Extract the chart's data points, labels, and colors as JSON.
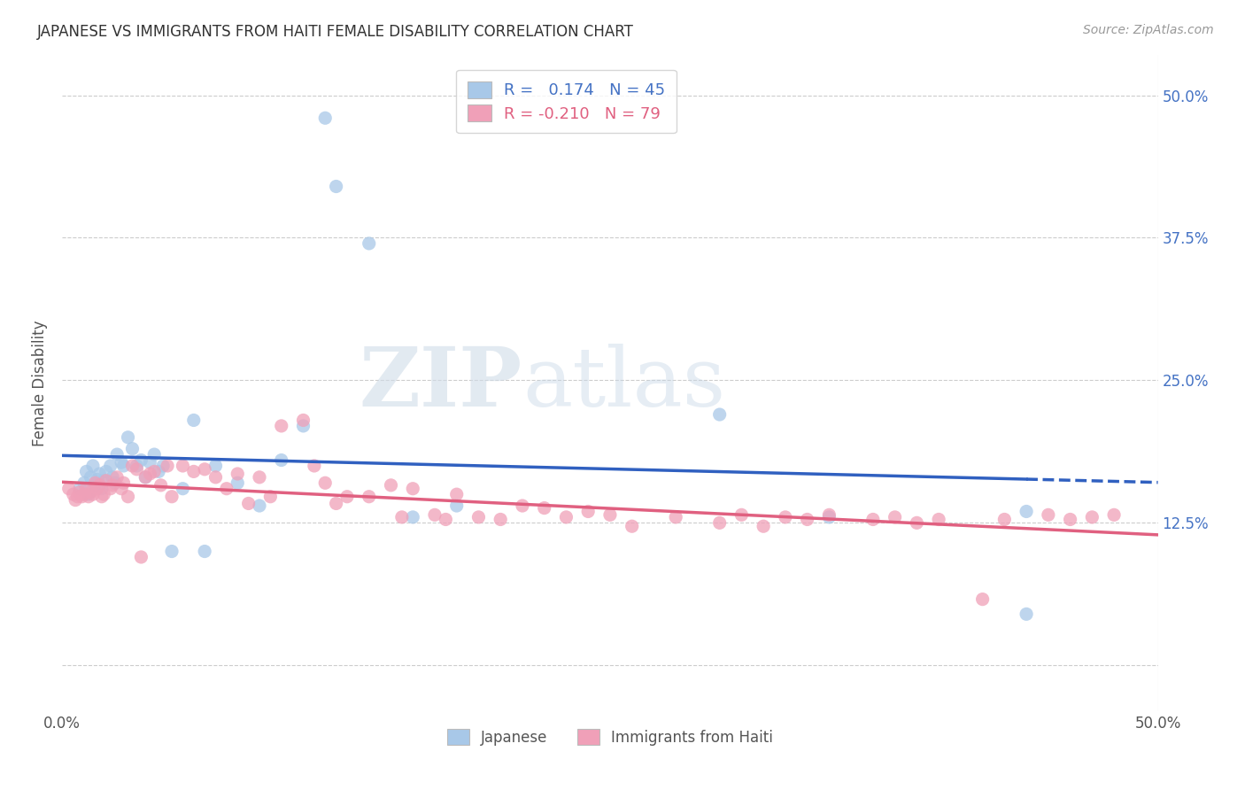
{
  "title": "JAPANESE VS IMMIGRANTS FROM HAITI FEMALE DISABILITY CORRELATION CHART",
  "source": "Source: ZipAtlas.com",
  "ylabel": "Female Disability",
  "xlim": [
    0.0,
    0.5
  ],
  "ylim": [
    -0.04,
    0.535
  ],
  "yticks": [
    0.0,
    0.125,
    0.25,
    0.375,
    0.5
  ],
  "ytick_labels": [
    "",
    "12.5%",
    "25.0%",
    "37.5%",
    "50.0%"
  ],
  "xtick_labels": [
    "0.0%",
    "",
    "",
    "",
    "",
    "50.0%"
  ],
  "legend_label1": "Japanese",
  "legend_label2": "Immigrants from Haiti",
  "legend_text1": "R =   0.174   N = 45",
  "legend_text2": "R = -0.210   N = 79",
  "color_blue": "#a8c8e8",
  "color_pink": "#f0a0b8",
  "line_blue": "#3060c0",
  "line_pink": "#e06080",
  "background_color": "#ffffff",
  "watermark": "ZIPatlas",
  "jp_x": [
    0.008,
    0.01,
    0.011,
    0.012,
    0.013,
    0.014,
    0.015,
    0.016,
    0.017,
    0.018,
    0.019,
    0.02,
    0.022,
    0.023,
    0.024,
    0.025,
    0.027,
    0.028,
    0.03,
    0.032,
    0.034,
    0.036,
    0.038,
    0.04,
    0.042,
    0.044,
    0.046,
    0.05,
    0.055,
    0.06,
    0.065,
    0.07,
    0.08,
    0.09,
    0.1,
    0.11,
    0.12,
    0.125,
    0.14,
    0.16,
    0.18,
    0.3,
    0.35,
    0.44,
    0.44
  ],
  "jp_y": [
    0.155,
    0.16,
    0.17,
    0.15,
    0.165,
    0.175,
    0.158,
    0.163,
    0.168,
    0.155,
    0.162,
    0.17,
    0.175,
    0.165,
    0.16,
    0.185,
    0.178,
    0.175,
    0.2,
    0.19,
    0.175,
    0.18,
    0.165,
    0.178,
    0.185,
    0.17,
    0.175,
    0.1,
    0.155,
    0.215,
    0.1,
    0.175,
    0.16,
    0.14,
    0.18,
    0.21,
    0.48,
    0.42,
    0.37,
    0.13,
    0.14,
    0.22,
    0.13,
    0.045,
    0.135
  ],
  "ht_x": [
    0.003,
    0.005,
    0.006,
    0.007,
    0.008,
    0.009,
    0.01,
    0.011,
    0.012,
    0.013,
    0.014,
    0.015,
    0.016,
    0.017,
    0.018,
    0.019,
    0.02,
    0.022,
    0.023,
    0.025,
    0.027,
    0.028,
    0.03,
    0.032,
    0.034,
    0.036,
    0.038,
    0.04,
    0.042,
    0.045,
    0.048,
    0.05,
    0.055,
    0.06,
    0.065,
    0.07,
    0.075,
    0.08,
    0.085,
    0.09,
    0.095,
    0.1,
    0.11,
    0.115,
    0.12,
    0.125,
    0.13,
    0.14,
    0.15,
    0.155,
    0.16,
    0.17,
    0.175,
    0.18,
    0.19,
    0.2,
    0.21,
    0.22,
    0.23,
    0.24,
    0.25,
    0.26,
    0.28,
    0.3,
    0.31,
    0.32,
    0.33,
    0.34,
    0.35,
    0.37,
    0.38,
    0.39,
    0.4,
    0.42,
    0.43,
    0.45,
    0.46,
    0.47,
    0.48
  ],
  "ht_y": [
    0.155,
    0.15,
    0.145,
    0.148,
    0.152,
    0.148,
    0.15,
    0.155,
    0.148,
    0.152,
    0.15,
    0.16,
    0.155,
    0.158,
    0.148,
    0.15,
    0.162,
    0.155,
    0.158,
    0.165,
    0.155,
    0.16,
    0.148,
    0.175,
    0.172,
    0.095,
    0.165,
    0.168,
    0.17,
    0.158,
    0.175,
    0.148,
    0.175,
    0.17,
    0.172,
    0.165,
    0.155,
    0.168,
    0.142,
    0.165,
    0.148,
    0.21,
    0.215,
    0.175,
    0.16,
    0.142,
    0.148,
    0.148,
    0.158,
    0.13,
    0.155,
    0.132,
    0.128,
    0.15,
    0.13,
    0.128,
    0.14,
    0.138,
    0.13,
    0.135,
    0.132,
    0.122,
    0.13,
    0.125,
    0.132,
    0.122,
    0.13,
    0.128,
    0.132,
    0.128,
    0.13,
    0.125,
    0.128,
    0.058,
    0.128,
    0.132,
    0.128,
    0.13,
    0.132
  ]
}
